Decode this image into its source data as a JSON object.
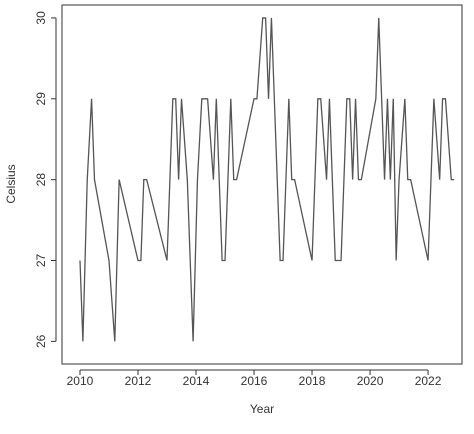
{
  "chart_data": {
    "type": "line",
    "x_label": "Year",
    "y_label": "Celsius",
    "x": [
      2010.0,
      2010.1,
      2010.25,
      2010.4,
      2010.5,
      2011.0,
      2011.2,
      2011.35,
      2012.0,
      2012.1,
      2012.2,
      2012.3,
      2013.0,
      2013.1,
      2013.2,
      2013.3,
      2013.4,
      2013.5,
      2013.7,
      2013.8,
      2013.9,
      2014.05,
      2014.2,
      2014.4,
      2014.6,
      2014.7,
      2014.8,
      2014.9,
      2015.0,
      2015.1,
      2015.2,
      2015.3,
      2015.4,
      2016.0,
      2016.1,
      2016.3,
      2016.4,
      2016.5,
      2016.6,
      2016.7,
      2016.8,
      2016.9,
      2017.0,
      2017.1,
      2017.2,
      2017.3,
      2017.4,
      2018.0,
      2018.1,
      2018.2,
      2018.3,
      2018.5,
      2018.6,
      2018.7,
      2018.8,
      2019.0,
      2019.1,
      2019.2,
      2019.3,
      2019.4,
      2019.5,
      2019.6,
      2019.7,
      2020.2,
      2020.3,
      2020.4,
      2020.5,
      2020.6,
      2020.7,
      2020.8,
      2020.9,
      2021.0,
      2021.2,
      2021.3,
      2021.4,
      2022.0,
      2022.1,
      2022.2,
      2022.4,
      2022.5,
      2022.6,
      2022.8,
      2022.9
    ],
    "series": [
      {
        "color": "#555555",
        "values": [
          27,
          26,
          28,
          29,
          28,
          27,
          26,
          28,
          27,
          27,
          28,
          28,
          27,
          28,
          29,
          29,
          28,
          29,
          28,
          27,
          26,
          28,
          29,
          29,
          28,
          29,
          28,
          27,
          27,
          28,
          29,
          28,
          28,
          29,
          29,
          30,
          30,
          29,
          30,
          29,
          28,
          27,
          27,
          28,
          29,
          28,
          28,
          27,
          28,
          29,
          29,
          28,
          29,
          28,
          27,
          27,
          28,
          29,
          29,
          28,
          29,
          28,
          28,
          29,
          30,
          29,
          28,
          29,
          28,
          29,
          27,
          28,
          29,
          28,
          28,
          27,
          28,
          29,
          28,
          29,
          29,
          28,
          28
        ]
      }
    ],
    "xlim": [
      2009.38,
      2023.17
    ],
    "ylim": [
      25.72,
      30.16
    ],
    "xticks": [
      2010,
      2012,
      2014,
      2016,
      2018,
      2020,
      2022
    ],
    "yticks": [
      26,
      27,
      28,
      29,
      30
    ]
  }
}
